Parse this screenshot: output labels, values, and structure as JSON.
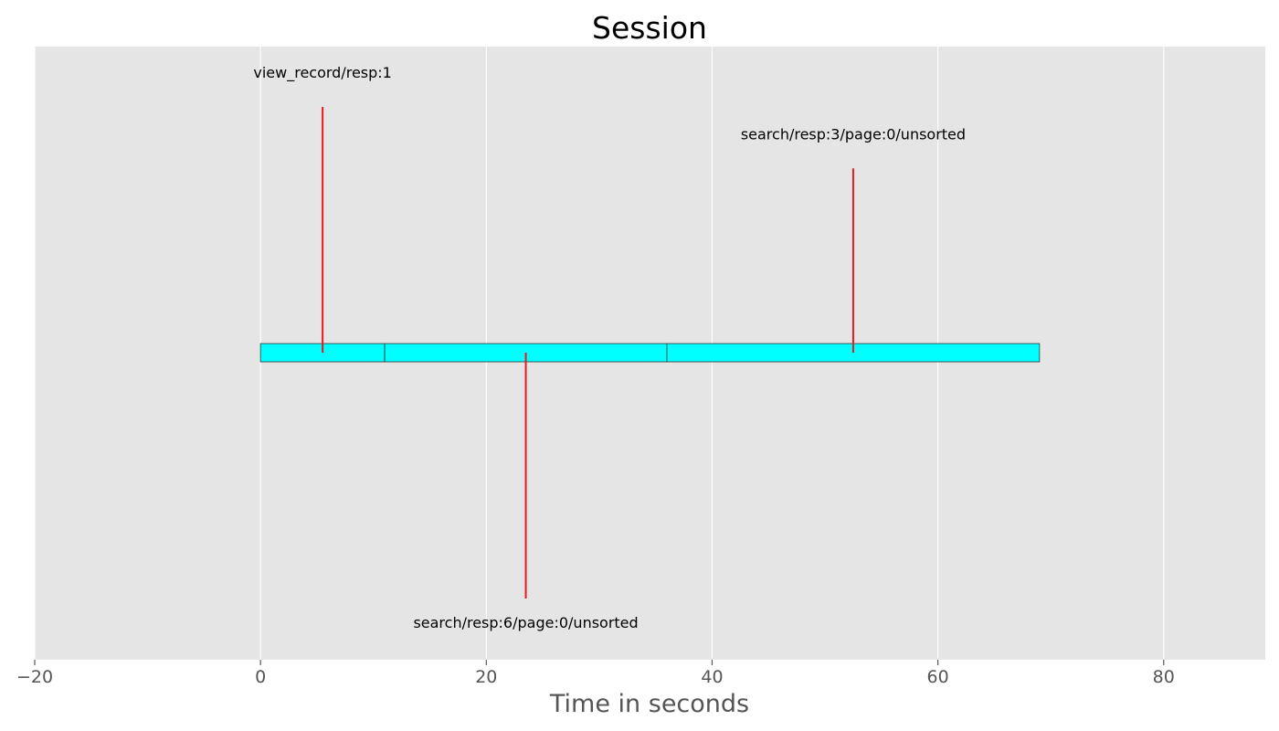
{
  "chart_data": {
    "type": "timeline",
    "title": "Session",
    "xlabel": "Time in seconds",
    "ylabel": "",
    "xlim": [
      -20,
      89
    ],
    "xticks": [
      -20,
      0,
      20,
      40,
      60,
      80
    ],
    "xtick_labels": [
      "−20",
      "0",
      "20",
      "40",
      "60",
      "80"
    ],
    "grid": true,
    "segments": [
      {
        "start": 0,
        "end": 11
      },
      {
        "start": 11,
        "end": 36
      },
      {
        "start": 36,
        "end": 69
      }
    ],
    "events": [
      {
        "time": 5.5,
        "label": "view_record/resp:1",
        "direction": "up",
        "length": 1.0
      },
      {
        "time": 23.5,
        "label": "search/resp:6/page:0/unsorted",
        "direction": "down",
        "length": 1.0
      },
      {
        "time": 52.5,
        "label": "search/resp:3/page:0/unsorted",
        "direction": "up",
        "length": 0.75
      }
    ],
    "colors": {
      "plot_background": "#E5E5E5",
      "grid": "#FFFFFF",
      "segment_fill": "#00FFFF",
      "segment_edge": "#333333",
      "event_line": "#E8191F"
    }
  }
}
